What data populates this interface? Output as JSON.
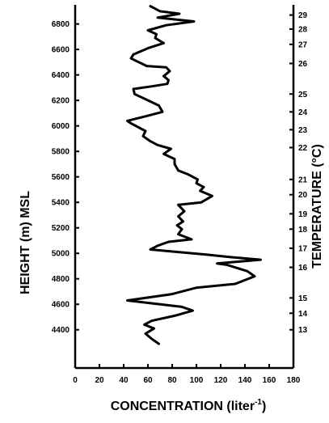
{
  "chart_data": {
    "type": "line",
    "title": "",
    "xlabel": "CONCENTRATION (liter",
    "xlabel_superscript": "-1",
    "xlabel_close": ")",
    "ylabel": "HEIGHT (m) MSL",
    "y2label": "TEMPERATURE (°C)",
    "xlim": [
      0,
      180
    ],
    "ylim": [
      4100,
      6950
    ],
    "xticks": [
      "0",
      "20",
      "40",
      "60",
      "80",
      "100",
      "120",
      "140",
      "160",
      "180"
    ],
    "xtick_values": [
      0,
      20,
      40,
      60,
      80,
      100,
      120,
      140,
      160,
      180
    ],
    "yticks": [
      "4400",
      "4600",
      "4800",
      "5000",
      "5200",
      "5400",
      "5600",
      "5800",
      "6000",
      "6200",
      "6400",
      "6600",
      "6800"
    ],
    "ytick_values": [
      4400,
      4600,
      4800,
      5000,
      5200,
      5400,
      5600,
      5800,
      6000,
      6200,
      6400,
      6600,
      6800
    ],
    "right_ticks": [
      {
        "label": "13",
        "height": 4400
      },
      {
        "label": "14",
        "height": 4530
      },
      {
        "label": "15",
        "height": 4650
      },
      {
        "label": "16",
        "height": 4890
      },
      {
        "label": "17",
        "height": 5040
      },
      {
        "label": "18",
        "height": 5190
      },
      {
        "label": "19",
        "height": 5310
      },
      {
        "label": "20",
        "height": 5460
      },
      {
        "label": "21",
        "height": 5580
      },
      {
        "label": "22",
        "height": 5830
      },
      {
        "label": "23",
        "height": 5970
      },
      {
        "label": "24",
        "height": 6110
      },
      {
        "label": "25",
        "height": 6250
      },
      {
        "label": "26",
        "height": 6490
      },
      {
        "label": "27",
        "height": 6640
      },
      {
        "label": "28",
        "height": 6760
      },
      {
        "label": "29",
        "height": 6870
      }
    ],
    "grid": false,
    "series": [
      {
        "values": [
          [
            69,
            4290
          ],
          [
            63,
            4330
          ],
          [
            58,
            4370
          ],
          [
            65,
            4410
          ],
          [
            57,
            4440
          ],
          [
            63,
            4470
          ],
          [
            82,
            4510
          ],
          [
            97,
            4550
          ],
          [
            88,
            4580
          ],
          [
            43,
            4630
          ],
          [
            80,
            4680
          ],
          [
            100,
            4730
          ],
          [
            132,
            4760
          ],
          [
            148,
            4820
          ],
          [
            142,
            4860
          ],
          [
            125,
            4910
          ],
          [
            117,
            4920
          ],
          [
            153,
            4950
          ],
          [
            128,
            4970
          ],
          [
            108,
            4990
          ],
          [
            62,
            5030
          ],
          [
            68,
            5060
          ],
          [
            77,
            5090
          ],
          [
            96,
            5110
          ],
          [
            85,
            5150
          ],
          [
            88,
            5190
          ],
          [
            84,
            5220
          ],
          [
            89,
            5250
          ],
          [
            85,
            5290
          ],
          [
            90,
            5330
          ],
          [
            85,
            5380
          ],
          [
            104,
            5400
          ],
          [
            113,
            5450
          ],
          [
            103,
            5490
          ],
          [
            106,
            5520
          ],
          [
            100,
            5550
          ],
          [
            101,
            5580
          ],
          [
            93,
            5620
          ],
          [
            85,
            5650
          ],
          [
            82,
            5700
          ],
          [
            82,
            5740
          ],
          [
            73,
            5780
          ],
          [
            79,
            5820
          ],
          [
            68,
            5850
          ],
          [
            62,
            5880
          ],
          [
            56,
            5920
          ],
          [
            58,
            5960
          ],
          [
            46,
            6020
          ],
          [
            43,
            6040
          ],
          [
            60,
            6080
          ],
          [
            72,
            6110
          ],
          [
            69,
            6160
          ],
          [
            58,
            6210
          ],
          [
            49,
            6250
          ],
          [
            48,
            6290
          ],
          [
            63,
            6310
          ],
          [
            76,
            6330
          ],
          [
            77,
            6360
          ],
          [
            73,
            6390
          ],
          [
            78,
            6430
          ],
          [
            75,
            6460
          ],
          [
            59,
            6470
          ],
          [
            46,
            6530
          ],
          [
            48,
            6560
          ],
          [
            60,
            6610
          ],
          [
            73,
            6650
          ],
          [
            66,
            6690
          ],
          [
            67,
            6720
          ],
          [
            60,
            6750
          ],
          [
            75,
            6790
          ],
          [
            98,
            6820
          ],
          [
            68,
            6850
          ],
          [
            86,
            6880
          ],
          [
            70,
            6900
          ],
          [
            62,
            6940
          ]
        ]
      }
    ]
  }
}
